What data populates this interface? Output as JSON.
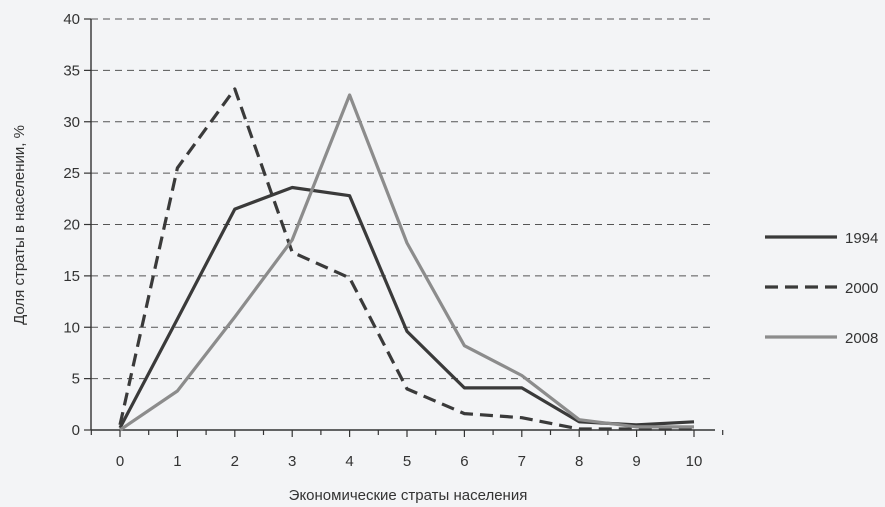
{
  "chart_data": {
    "type": "line",
    "title": "",
    "xlabel": "Экономические страты населения",
    "ylabel": "Доля страты в населении, %",
    "x": [
      0,
      1,
      2,
      3,
      4,
      5,
      6,
      7,
      8,
      9,
      10
    ],
    "xlim": [
      0,
      10
    ],
    "ylim": [
      0,
      40
    ],
    "x_ticks": [
      "0",
      "1",
      "2",
      "3",
      "4",
      "5",
      "6",
      "7",
      "8",
      "9",
      "10"
    ],
    "y_ticks": [
      "0",
      "5",
      "10",
      "15",
      "20",
      "25",
      "30",
      "35",
      "40"
    ],
    "grid": "horizontal dashed",
    "legend_position": "right",
    "series": [
      {
        "name": "1994",
        "style": "solid",
        "color": "#3a3a3a",
        "values": [
          0.2,
          10.8,
          21.5,
          23.6,
          22.8,
          9.6,
          4.1,
          4.1,
          0.8,
          0.5,
          0.8
        ]
      },
      {
        "name": "2000",
        "style": "dashed",
        "color": "#3a3a3a",
        "values": [
          0.5,
          25.5,
          33.2,
          17.3,
          14.8,
          4.0,
          1.6,
          1.2,
          0.1,
          0.1,
          0.1
        ]
      },
      {
        "name": "2008",
        "style": "solid",
        "color": "#8c8c8c",
        "values": [
          0.0,
          3.8,
          11.0,
          18.5,
          32.6,
          18.2,
          8.2,
          5.3,
          1.0,
          0.3,
          0.3
        ]
      }
    ]
  }
}
